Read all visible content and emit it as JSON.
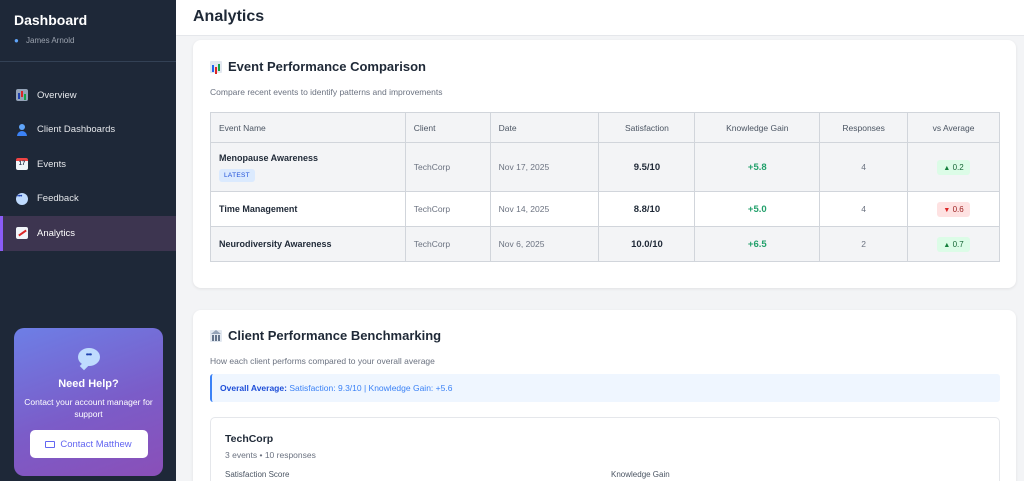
{
  "sidebar": {
    "title": "Dashboard",
    "user": "James Arnold",
    "nav": [
      {
        "label": "Overview",
        "icon": "bar-chart-icon"
      },
      {
        "label": "Client Dashboards",
        "icon": "user-icon"
      },
      {
        "label": "Events",
        "icon": "calendar-icon"
      },
      {
        "label": "Feedback",
        "icon": "speech-bubble-icon"
      },
      {
        "label": "Analytics",
        "icon": "trend-chart-icon",
        "active": true
      }
    ],
    "help": {
      "title": "Need Help?",
      "text": "Contact your account manager for support",
      "button": "Contact Matthew"
    }
  },
  "header": {
    "title": "Analytics"
  },
  "comparison": {
    "title": "Event Performance Comparison",
    "subtitle": "Compare recent events to identify patterns and improvements",
    "columns": [
      "Event Name",
      "Client",
      "Date",
      "Satisfaction",
      "Knowledge Gain",
      "Responses",
      "vs Average"
    ],
    "rows": [
      {
        "name": "Menopause Awareness",
        "badge": "LATEST",
        "client": "TechCorp",
        "date": "Nov 17, 2025",
        "satisfaction": "9.5/10",
        "knowledge_gain": "+5.8",
        "responses": "4",
        "vs_average": "0.2",
        "direction": "up"
      },
      {
        "name": "Time Management",
        "client": "TechCorp",
        "date": "Nov 14, 2025",
        "satisfaction": "8.8/10",
        "knowledge_gain": "+5.0",
        "responses": "4",
        "vs_average": "0.6",
        "direction": "down"
      },
      {
        "name": "Neurodiversity Awareness",
        "client": "TechCorp",
        "date": "Nov 6, 2025",
        "satisfaction": "10.0/10",
        "knowledge_gain": "+6.5",
        "responses": "2",
        "vs_average": "0.7",
        "direction": "up"
      }
    ]
  },
  "benchmark": {
    "title": "Client Performance Benchmarking",
    "subtitle": "How each client performs compared to your overall average",
    "overall_label": "Overall Average:",
    "overall_value": "Satisfaction: 9.3/10 | Knowledge Gain: +5.6",
    "client": {
      "name": "TechCorp",
      "meta": "3 events • 10 responses",
      "satisfaction_label": "Satisfaction Score",
      "knowledge_label": "Knowledge Gain"
    }
  },
  "colors": {
    "sidebar_bg": "#1e2838",
    "accent": "#8b5cf6",
    "positive": "#22a06b",
    "negative": "#dc2626"
  }
}
